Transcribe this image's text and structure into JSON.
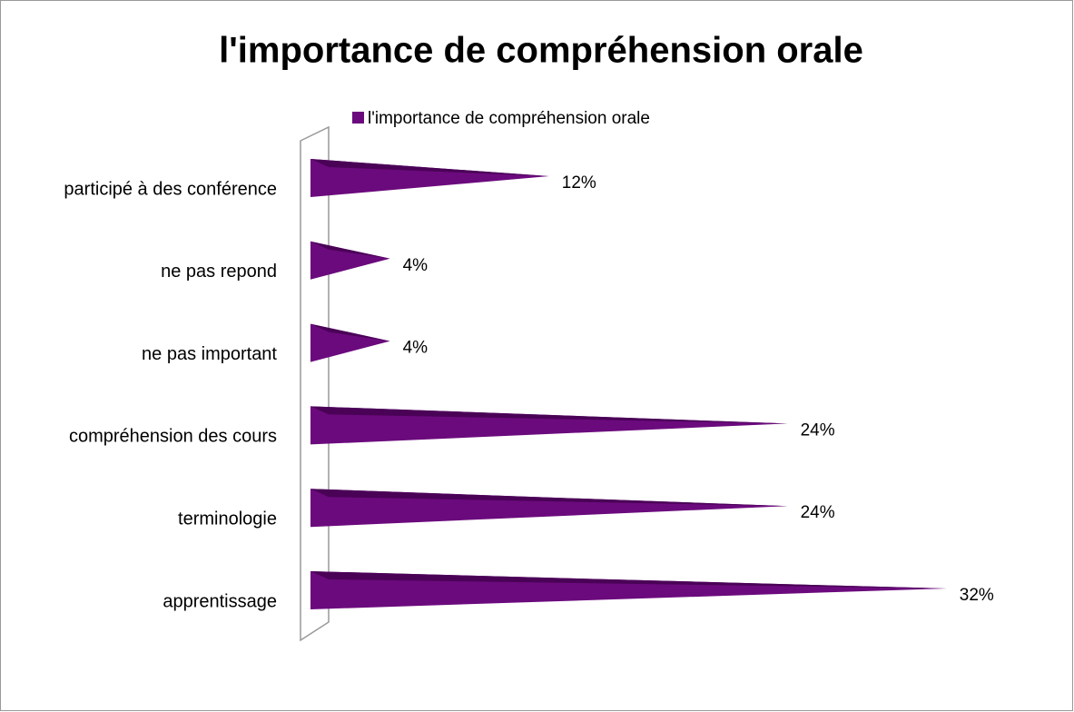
{
  "chart_data": {
    "type": "bar3d_cone_horizontal",
    "title": "l'importance de compréhension orale",
    "categories": [
      "participé à des conférence",
      "ne pas repond",
      "ne pas important",
      "compréhension des cours",
      "terminologie",
      "apprentissage"
    ],
    "series": [
      {
        "name": "l'importance de compréhension orale",
        "color": "#6b0a7d",
        "values": [
          12,
          4,
          4,
          24,
          24,
          32
        ],
        "value_labels": [
          "12%",
          "4%",
          "4%",
          "24%",
          "24%",
          "32%"
        ]
      }
    ],
    "legend": "top"
  }
}
